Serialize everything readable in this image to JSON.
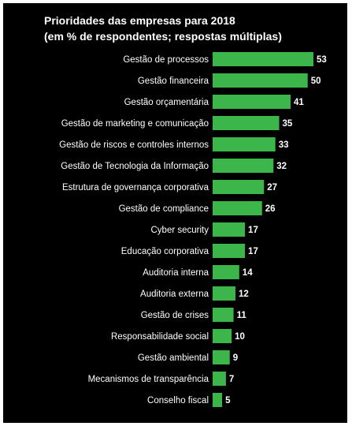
{
  "chart_data": {
    "type": "bar",
    "orientation": "horizontal",
    "title": "Prioridades das empresas para 2018",
    "subtitle": "(em % de respondentes; respostas múltiplas)",
    "categories": [
      "Gestão de processos",
      "Gestão financeira",
      "Gestão orçamentária",
      "Gestão de marketing e comunicação",
      "Gestão de riscos e controles internos",
      "Gestão de Tecnologia da Informação",
      "Estrutura de governança corporativa",
      "Gestão de compliance",
      "Cyber security",
      "Educação corporativa",
      "Auditoria interna",
      "Auditoria externa",
      "Gestão de crises",
      "Responsabilidade social",
      "Gestão ambiental",
      "Mecanismos de transparência",
      "Conselho fiscal"
    ],
    "values": [
      53,
      50,
      41,
      35,
      33,
      32,
      27,
      26,
      17,
      17,
      14,
      12,
      11,
      10,
      9,
      7,
      5
    ],
    "xlim": [
      0,
      53
    ],
    "grid": false,
    "legend": "none",
    "colors": {
      "bar": "#3cb54a",
      "background": "#000000",
      "text": "#ffffff"
    }
  }
}
